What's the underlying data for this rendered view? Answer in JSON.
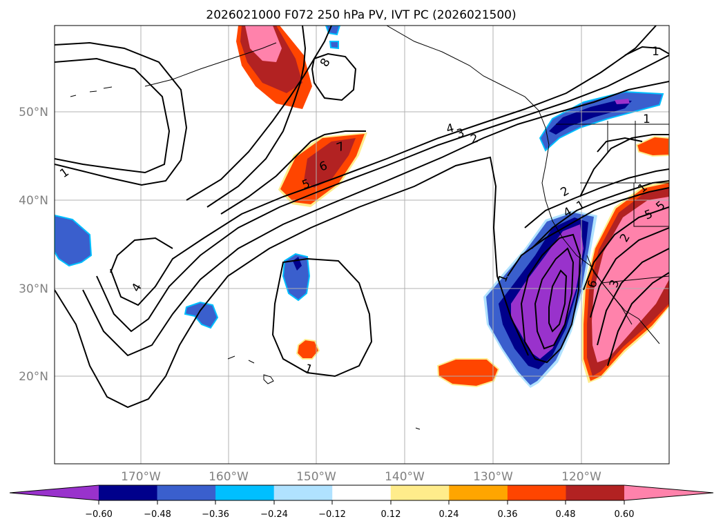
{
  "title": "2026021000 F072 250 hPa PV, IVT PC (2026021500)",
  "latitude_labels": [
    "50°N",
    "40°N",
    "30°N",
    "20°N"
  ],
  "longitude_labels": [
    "170°W",
    "160°W",
    "150°W",
    "140°W",
    "130°W",
    "120°W"
  ],
  "colorbar": {
    "tick_labels": [
      "−0.60",
      "−0.48",
      "−0.36",
      "−0.24",
      "−0.12",
      "0.12",
      "0.24",
      "0.36",
      "0.48",
      "0.60"
    ],
    "colors": [
      "#9932cc",
      "#00008b",
      "#3a5fcd",
      "#00bfff",
      "#b0e2ff",
      "#ffffff",
      "#ffec8b",
      "#ffa500",
      "#ff4500",
      "#b22222",
      "#ff82ab"
    ]
  },
  "contour_labels": [
    "1",
    "8",
    "7",
    "6",
    "5",
    "4",
    "3",
    "2",
    "1",
    "1",
    "4",
    "1",
    "1",
    "2",
    "4",
    "1",
    "5",
    "1",
    "3",
    "6",
    "2",
    "5"
  ],
  "colors": {
    "purple": "#9932cc",
    "dark_blue": "#00008b",
    "mid_blue": "#3a5fcd",
    "sky_blue": "#00bfff",
    "light_blue": "#b0e2ff",
    "yellow": "#ffec8b",
    "orange": "#ffa500",
    "red_orange": "#ff4500",
    "dark_red": "#b22222",
    "pink": "#ff82ab",
    "grid": "#b0b0b0",
    "axis_text": "#808080"
  }
}
